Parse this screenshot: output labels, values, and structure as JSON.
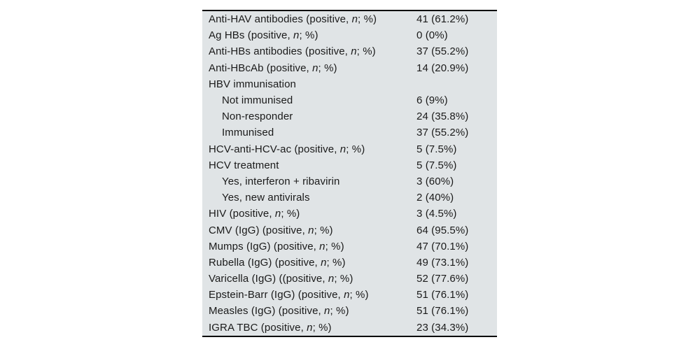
{
  "colors": {
    "page_bg": "#ffffff",
    "table_bg": "#e0e4e6",
    "rule": "#000000",
    "text": "#1a1a1a"
  },
  "table": {
    "rows": [
      {
        "indent": 0,
        "prefix": "Anti-HAV antibodies (positive, ",
        "italic": "n",
        "suffix": "; %)",
        "value": "41 (61.2%)"
      },
      {
        "indent": 0,
        "prefix": "Ag HBs (positive, ",
        "italic": "n",
        "suffix": "; %)",
        "value": "0 (0%)"
      },
      {
        "indent": 0,
        "prefix": "Anti-HBs antibodies (positive, ",
        "italic": "n",
        "suffix": "; %)",
        "value": "37 (55.2%)"
      },
      {
        "indent": 0,
        "prefix": "Anti-HBcAb (positive, ",
        "italic": "n",
        "suffix": "; %)",
        "value": "14 (20.9%)"
      },
      {
        "indent": 0,
        "prefix": "HBV immunisation",
        "italic": "",
        "suffix": "",
        "value": ""
      },
      {
        "indent": 1,
        "prefix": "Not immunised",
        "italic": "",
        "suffix": "",
        "value": "6 (9%)"
      },
      {
        "indent": 1,
        "prefix": "Non-responder",
        "italic": "",
        "suffix": "",
        "value": "24 (35.8%)"
      },
      {
        "indent": 1,
        "prefix": "Immunised",
        "italic": "",
        "suffix": "",
        "value": "37 (55.2%)"
      },
      {
        "indent": 0,
        "prefix": "HCV-anti-HCV-ac (positive, ",
        "italic": "n",
        "suffix": "; %)",
        "value": "5 (7.5%)"
      },
      {
        "indent": 0,
        "prefix": "HCV treatment",
        "italic": "",
        "suffix": "",
        "value": "5 (7.5%)"
      },
      {
        "indent": 1,
        "prefix": "Yes, interferon + ribavirin",
        "italic": "",
        "suffix": "",
        "value": "3 (60%)"
      },
      {
        "indent": 1,
        "prefix": "Yes, new antivirals",
        "italic": "",
        "suffix": "",
        "value": "2 (40%)"
      },
      {
        "indent": 0,
        "prefix": "HIV (positive, ",
        "italic": "n",
        "suffix": "; %)",
        "value": "3 (4.5%)"
      },
      {
        "indent": 0,
        "prefix": "CMV (IgG) (positive, ",
        "italic": "n",
        "suffix": "; %)",
        "value": "64 (95.5%)"
      },
      {
        "indent": 0,
        "prefix": "Mumps (IgG) (positive, ",
        "italic": "n",
        "suffix": "; %)",
        "value": "47 (70.1%)"
      },
      {
        "indent": 0,
        "prefix": "Rubella (IgG) (positive, ",
        "italic": "n",
        "suffix": "; %)",
        "value": "49 (73.1%)"
      },
      {
        "indent": 0,
        "prefix": "Varicella (IgG) ((positive, ",
        "italic": "n",
        "suffix": "; %)",
        "value": "52 (77.6%)"
      },
      {
        "indent": 0,
        "prefix": "Epstein-Barr (IgG) (positive, ",
        "italic": "n",
        "suffix": "; %)",
        "value": "51 (76.1%)"
      },
      {
        "indent": 0,
        "prefix": "Measles (IgG) (positive, ",
        "italic": "n",
        "suffix": "; %)",
        "value": "51 (76.1%)"
      },
      {
        "indent": 0,
        "prefix": "IGRA TBC (positive, ",
        "italic": "n",
        "suffix": "; %)",
        "value": "23 (34.3%)"
      }
    ]
  }
}
